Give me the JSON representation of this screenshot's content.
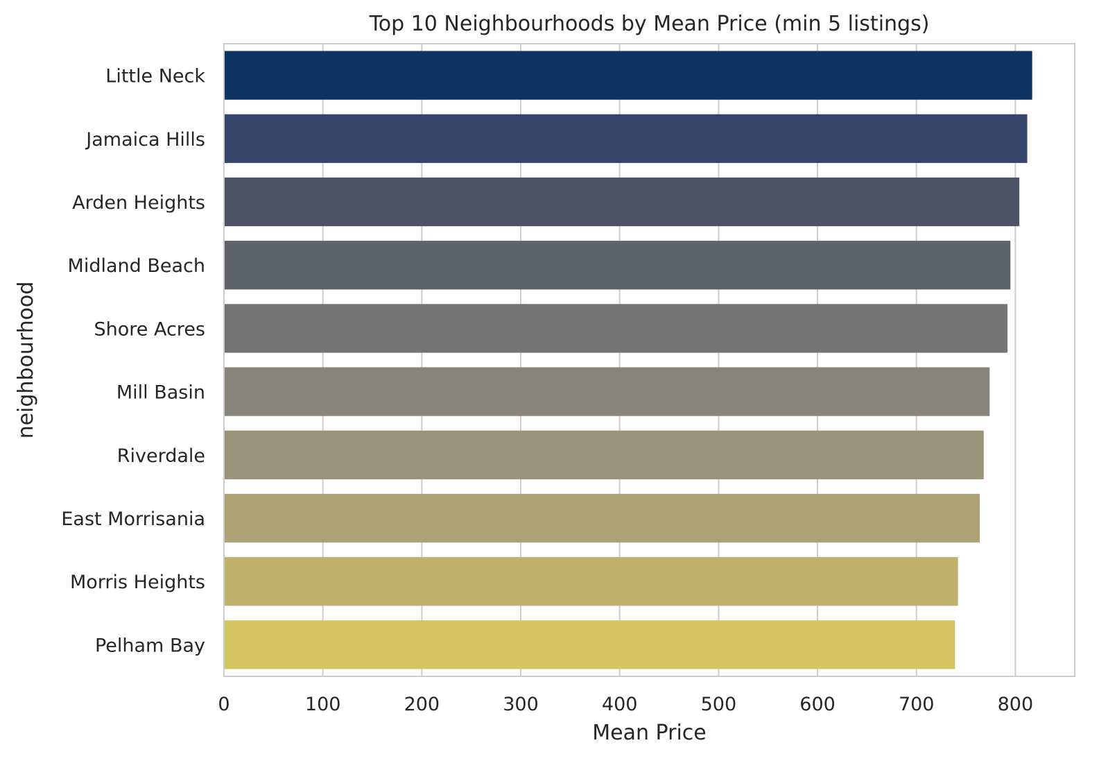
{
  "chart_data": {
    "type": "bar",
    "orientation": "horizontal",
    "title": "Top 10 Neighbourhoods by Mean Price (min 5 listings)",
    "xlabel": "Mean Price",
    "ylabel": "neighbourhood",
    "xlim": [
      0,
      860
    ],
    "xticks": [
      0,
      100,
      200,
      300,
      400,
      500,
      600,
      700,
      800
    ],
    "grid": "vertical",
    "categories": [
      "Little Neck",
      "Jamaica Hills",
      "Arden Heights",
      "Midland Beach",
      "Shore Acres",
      "Mill Basin",
      "Riverdale",
      "East Morrisania",
      "Morris Heights",
      "Pelham Bay"
    ],
    "values": [
      817,
      812,
      804,
      795,
      792,
      774,
      768,
      764,
      742,
      739
    ],
    "colors": [
      "#0f3464",
      "#36466a",
      "#4d5367",
      "#5f636c",
      "#737373",
      "#878479",
      "#9a9278",
      "#ada276",
      "#c0b26d",
      "#d4c462"
    ]
  }
}
